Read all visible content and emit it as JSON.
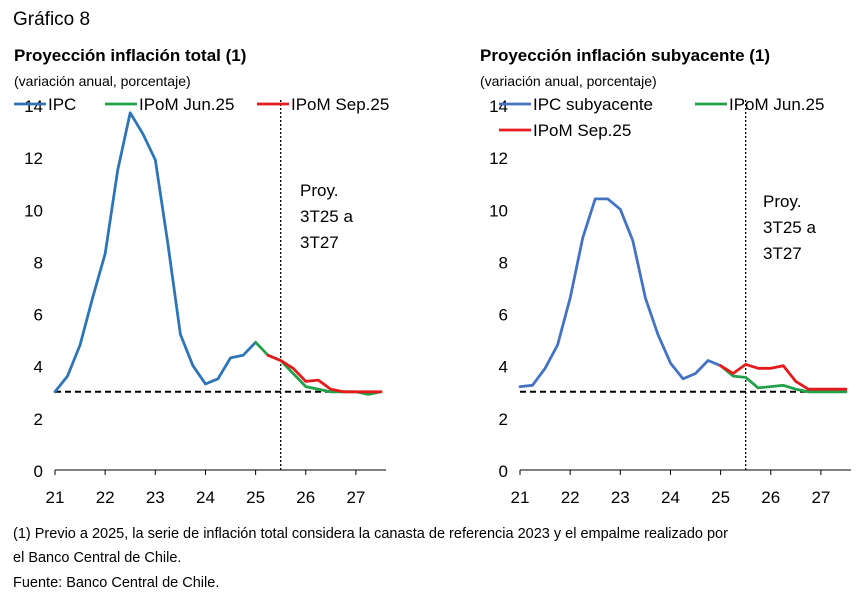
{
  "figure": {
    "title": "Gráfico 8",
    "footnote_1": "(1) Previo a 2025, la serie de inflación total considera la canasta de referencia 2023 y el empalme realizado por",
    "footnote_2": "el Banco Central de Chile.",
    "source": "Fuente: Banco Central de Chile."
  },
  "chart_data": [
    {
      "type": "line",
      "title": "Proyección inflación total (1)",
      "subtitle": "(variación anual, porcentaje)",
      "xlabel": "",
      "ylabel": "",
      "xlim": [
        21,
        27.6
      ],
      "ylim": [
        0,
        14
      ],
      "xticks": [
        21,
        22,
        23,
        24,
        25,
        26,
        27
      ],
      "yticks": [
        0,
        2,
        4,
        6,
        8,
        10,
        12,
        14
      ],
      "reference_line": 3,
      "projection_start": 25.5,
      "annotation": [
        "Proy.",
        "3T25 a",
        "3T27"
      ],
      "legend_position": "top",
      "series": [
        {
          "name": "IPC",
          "color": "#2e75b6",
          "x": [
            21.0,
            21.25,
            21.5,
            21.75,
            22.0,
            22.25,
            22.5,
            22.75,
            23.0,
            23.25,
            23.5,
            23.75,
            24.0,
            24.25,
            24.5,
            24.75,
            25.0
          ],
          "y": [
            3.0,
            3.6,
            4.8,
            6.6,
            8.3,
            11.5,
            13.7,
            12.9,
            11.9,
            8.7,
            5.2,
            4.0,
            3.3,
            3.5,
            4.3,
            4.4,
            4.9
          ]
        },
        {
          "name": "IPoM Jun.25",
          "color": "#21a14a",
          "x": [
            25.0,
            25.25,
            25.5,
            25.75,
            26.0,
            26.25,
            26.5,
            26.75,
            27.0,
            27.25,
            27.5
          ],
          "y": [
            4.9,
            4.4,
            4.2,
            3.7,
            3.2,
            3.1,
            3.0,
            3.0,
            3.0,
            2.9,
            3.0
          ]
        },
        {
          "name": "IPoM Sep.25",
          "color": "#e41a1c",
          "x": [
            25.25,
            25.5,
            25.75,
            26.0,
            26.25,
            26.5,
            26.75,
            27.0,
            27.25,
            27.5
          ],
          "y": [
            4.4,
            4.2,
            3.9,
            3.4,
            3.45,
            3.1,
            3.0,
            3.0,
            3.0,
            3.0
          ]
        }
      ]
    },
    {
      "type": "line",
      "title": "Proyección inflación subyacente (1)",
      "subtitle": "(variación anual, porcentaje)",
      "xlabel": "",
      "ylabel": "",
      "xlim": [
        21,
        27.6
      ],
      "ylim": [
        0,
        14
      ],
      "xticks": [
        21,
        22,
        23,
        24,
        25,
        26,
        27
      ],
      "yticks": [
        0,
        2,
        4,
        6,
        8,
        10,
        12,
        14
      ],
      "reference_line": 3,
      "projection_start": 25.5,
      "annotation": [
        "Proy.",
        "3T25 a",
        "3T27"
      ],
      "legend_position": "top",
      "series": [
        {
          "name": "IPC subyacente",
          "color": "#4472c4",
          "x": [
            21.0,
            21.25,
            21.5,
            21.75,
            22.0,
            22.25,
            22.5,
            22.75,
            23.0,
            23.25,
            23.5,
            23.75,
            24.0,
            24.25,
            24.5,
            24.75,
            25.0
          ],
          "y": [
            3.2,
            3.25,
            3.9,
            4.8,
            6.6,
            8.9,
            10.4,
            10.4,
            10.0,
            8.8,
            6.6,
            5.2,
            4.1,
            3.5,
            3.7,
            4.2,
            4.0
          ]
        },
        {
          "name": "IPoM Jun.25",
          "color": "#21a14a",
          "x": [
            25.0,
            25.25,
            25.5,
            25.75,
            26.0,
            26.25,
            26.5,
            26.75,
            27.0,
            27.25,
            27.5
          ],
          "y": [
            4.0,
            3.6,
            3.55,
            3.15,
            3.2,
            3.25,
            3.1,
            3.0,
            3.0,
            3.0,
            3.0
          ]
        },
        {
          "name": "IPoM Sep.25",
          "color": "#e41a1c",
          "x": [
            25.0,
            25.25,
            25.5,
            25.75,
            26.0,
            26.25,
            26.5,
            26.75,
            27.0,
            27.25,
            27.5
          ],
          "y": [
            4.0,
            3.7,
            4.05,
            3.9,
            3.9,
            4.0,
            3.4,
            3.1,
            3.1,
            3.1,
            3.1
          ]
        }
      ]
    }
  ]
}
